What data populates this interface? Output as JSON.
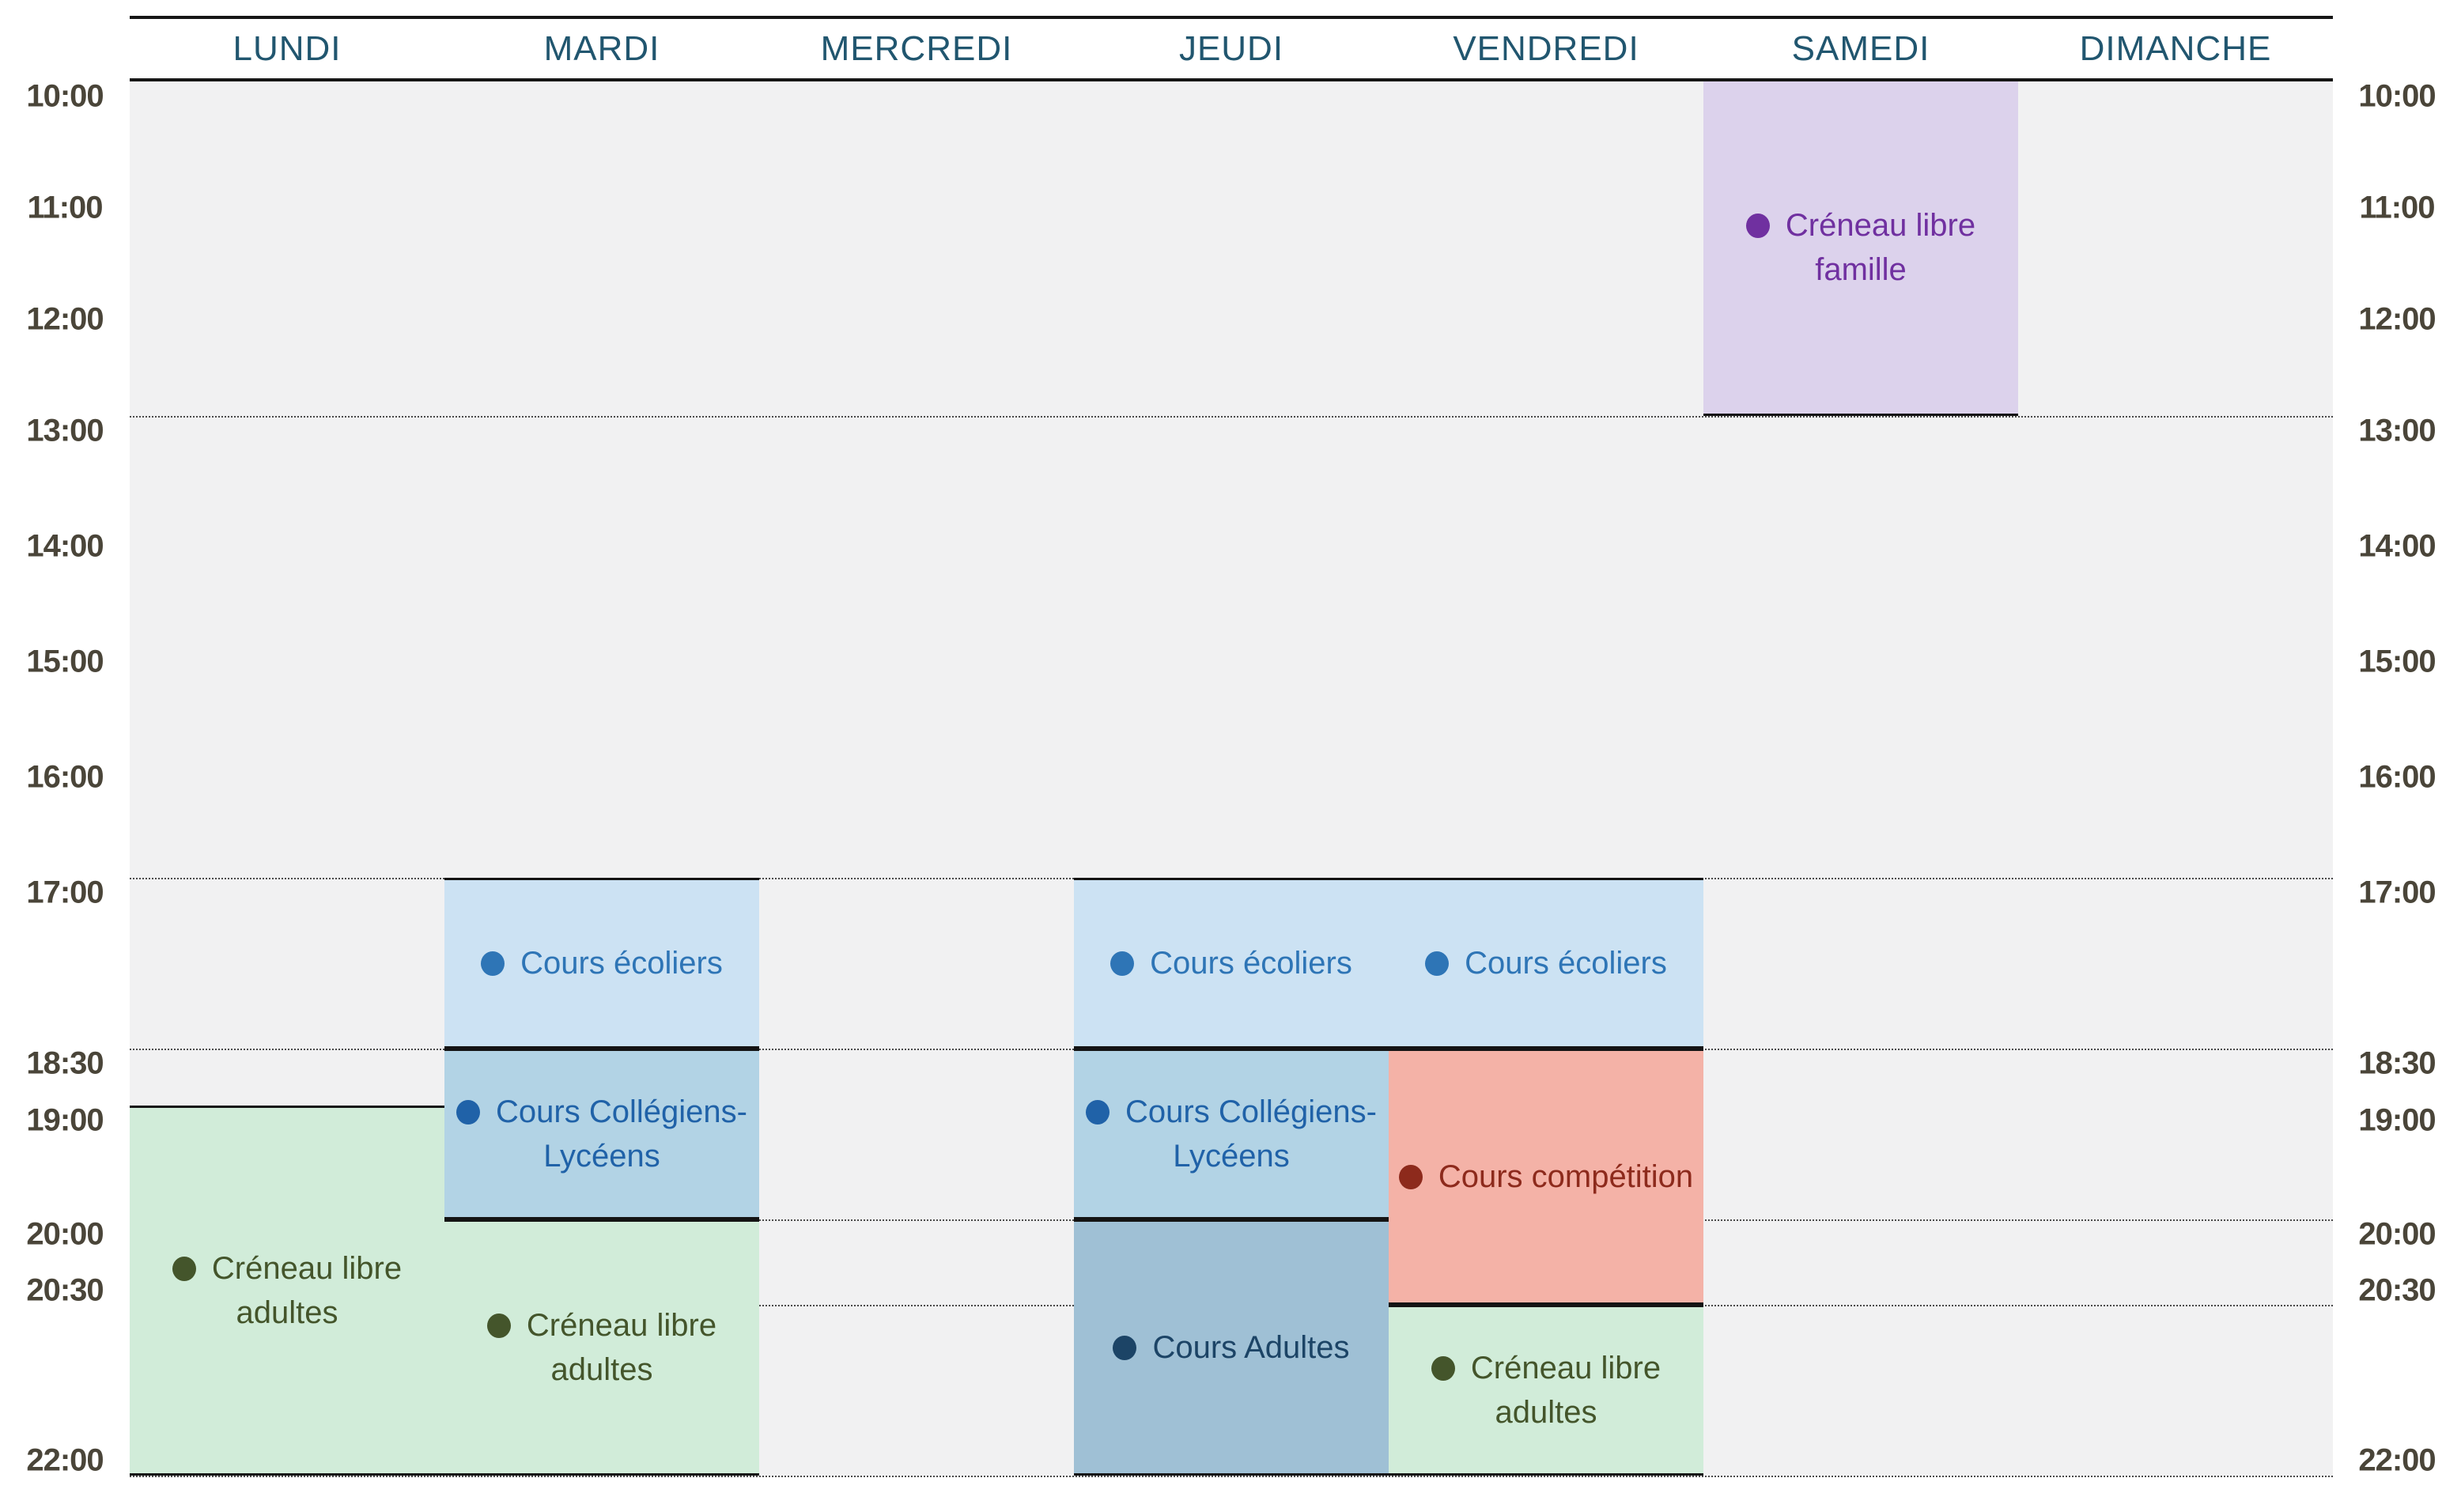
{
  "header": {
    "days": [
      "LUNDI",
      "MARDI",
      "MERCREDI",
      "JEUDI",
      "VENDREDI",
      "SAMEDI",
      "DIMANCHE"
    ]
  },
  "time_axis": {
    "labels": [
      "10:00",
      "11:00",
      "12:00",
      "13:00",
      "14:00",
      "15:00",
      "16:00",
      "17:00",
      "18:30",
      "19:00",
      "20:00",
      "20:30",
      "22:00"
    ]
  },
  "events": [
    {
      "day": "SAMEDI",
      "start": "10:00",
      "end": "13:00",
      "label_lines": [
        "Créneau libre",
        "famille"
      ],
      "bg_color": "#DCD2EC",
      "text_color": "#7030A0"
    },
    {
      "day": "MARDI",
      "start": "17:00",
      "end": "18:30",
      "label_lines": [
        "Cours écoliers"
      ],
      "bg_color": "#CCE2F3",
      "text_color": "#2E75B6"
    },
    {
      "day": "JEUDI",
      "start": "17:00",
      "end": "18:30",
      "label_lines": [
        "Cours écoliers"
      ],
      "bg_color": "#CCE2F3",
      "text_color": "#2E75B6"
    },
    {
      "day": "VENDREDI",
      "start": "17:00",
      "end": "18:30",
      "label_lines": [
        "Cours écoliers"
      ],
      "bg_color": "#CCE2F3",
      "text_color": "#2E75B6"
    },
    {
      "day": "MARDI",
      "start": "18:30",
      "end": "20:00",
      "label_lines": [
        "Cours Collégiens-",
        "Lycéens"
      ],
      "bg_color": "#B2D3E5",
      "text_color": "#2062A8"
    },
    {
      "day": "JEUDI",
      "start": "18:30",
      "end": "20:00",
      "label_lines": [
        "Cours Collégiens-",
        "Lycéens"
      ],
      "bg_color": "#B2D3E5",
      "text_color": "#2062A8"
    },
    {
      "day": "VENDREDI",
      "start": "18:30",
      "end": "20:30",
      "label_lines": [
        "Cours compétition"
      ],
      "bg_color": "#F4B2A7",
      "text_color": "#8D2A1C"
    },
    {
      "day": "LUNDI",
      "start": "19:00",
      "end": "22:00",
      "label_lines": [
        "Créneau libre",
        "adultes"
      ],
      "bg_color": "#D1ECD9",
      "text_color": "#44552B"
    },
    {
      "day": "MARDI",
      "start": "20:00",
      "end": "22:00",
      "label_lines": [
        "Créneau libre",
        "adultes"
      ],
      "bg_color": "#D1ECD9",
      "text_color": "#44552B"
    },
    {
      "day": "JEUDI",
      "start": "20:00",
      "end": "22:00",
      "label_lines": [
        "Cours Adultes"
      ],
      "bg_color": "#9FC0D5",
      "text_color": "#1C4466"
    },
    {
      "day": "VENDREDI",
      "start": "20:30",
      "end": "22:00",
      "label_lines": [
        "Créneau libre",
        "adultes"
      ],
      "bg_color": "#D1ECD9",
      "text_color": "#44552B"
    }
  ],
  "colors": {
    "grid_background": "#F1F1F2",
    "header_text": "#21566F",
    "time_label_text": "#4A4539",
    "solid_line": "#161616",
    "dotted_line": "#4a4a4a",
    "page_background": "#ffffff"
  }
}
